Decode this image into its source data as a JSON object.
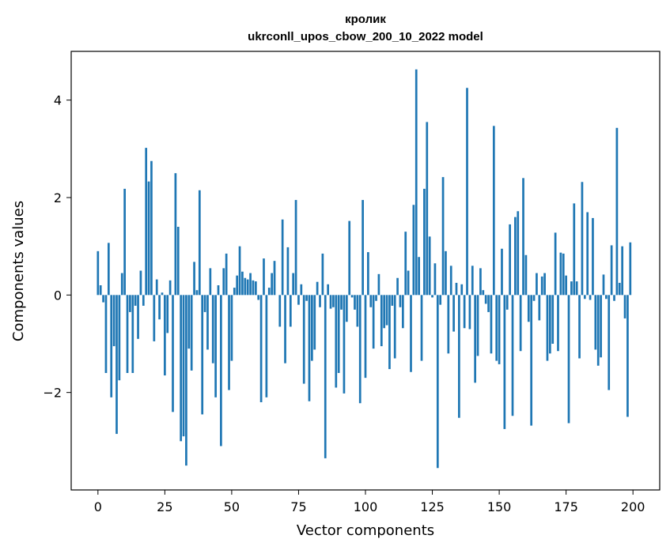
{
  "chart_data": {
    "type": "bar",
    "title_line1": "кролик",
    "title_line2": "ukrconll_upos_cbow_200_10_2022 model",
    "xlabel": "Vector components",
    "ylabel": "Components values",
    "xlim": [
      -10,
      210
    ],
    "ylim": [
      -4.0,
      5.0
    ],
    "xticks": [
      0,
      25,
      50,
      75,
      100,
      125,
      150,
      175,
      200
    ],
    "yticks": [
      -2,
      0,
      2,
      4
    ],
    "ytick_labels": [
      "−2",
      "0",
      "2",
      "4"
    ],
    "bar_color": "#1f77b4",
    "x": [
      0,
      1,
      2,
      3,
      4,
      5,
      6,
      7,
      8,
      9,
      10,
      11,
      12,
      13,
      14,
      15,
      16,
      17,
      18,
      19,
      20,
      21,
      22,
      23,
      24,
      25,
      26,
      27,
      28,
      29,
      30,
      31,
      32,
      33,
      34,
      35,
      36,
      37,
      38,
      39,
      40,
      41,
      42,
      43,
      44,
      45,
      46,
      47,
      48,
      49,
      50,
      51,
      52,
      53,
      54,
      55,
      56,
      57,
      58,
      59,
      60,
      61,
      62,
      63,
      64,
      65,
      66,
      67,
      68,
      69,
      70,
      71,
      72,
      73,
      74,
      75,
      76,
      77,
      78,
      79,
      80,
      81,
      82,
      83,
      84,
      85,
      86,
      87,
      88,
      89,
      90,
      91,
      92,
      93,
      94,
      95,
      96,
      97,
      98,
      99,
      100,
      101,
      102,
      103,
      104,
      105,
      106,
      107,
      108,
      109,
      110,
      111,
      112,
      113,
      114,
      115,
      116,
      117,
      118,
      119,
      120,
      121,
      122,
      123,
      124,
      125,
      126,
      127,
      128,
      129,
      130,
      131,
      132,
      133,
      134,
      135,
      136,
      137,
      138,
      139,
      140,
      141,
      142,
      143,
      144,
      145,
      146,
      147,
      148,
      149,
      150,
      151,
      152,
      153,
      154,
      155,
      156,
      157,
      158,
      159,
      160,
      161,
      162,
      163,
      164,
      165,
      166,
      167,
      168,
      169,
      170,
      171,
      172,
      173,
      174,
      175,
      176,
      177,
      178,
      179,
      180,
      181,
      182,
      183,
      184,
      185,
      186,
      187,
      188,
      189,
      190,
      191,
      192,
      193,
      194,
      195,
      196,
      197,
      198,
      199
    ],
    "values": [
      0.9,
      0.2,
      -0.15,
      -1.6,
      1.07,
      -2.1,
      -1.05,
      -2.85,
      -1.75,
      0.45,
      2.18,
      -1.6,
      -0.35,
      -1.6,
      -0.22,
      -0.9,
      0.5,
      -0.22,
      3.02,
      2.33,
      2.75,
      -0.95,
      0.32,
      -0.5,
      0.05,
      -1.65,
      -0.78,
      0.3,
      -2.4,
      2.5,
      1.4,
      -3.0,
      -2.9,
      -3.5,
      -1.1,
      -1.55,
      0.68,
      0.1,
      2.15,
      -2.45,
      -0.35,
      -1.12,
      0.55,
      -1.4,
      -2.1,
      0.2,
      -3.1,
      0.55,
      0.85,
      -1.95,
      -1.35,
      0.15,
      0.4,
      1.0,
      0.48,
      0.35,
      0.32,
      0.45,
      0.3,
      0.28,
      -0.1,
      -2.2,
      0.75,
      -2.1,
      0.15,
      0.45,
      0.7,
      0.0,
      -0.65,
      1.55,
      -1.4,
      0.98,
      -0.65,
      0.45,
      1.95,
      -0.2,
      0.22,
      -1.82,
      -0.12,
      -2.18,
      -1.35,
      -1.12,
      0.27,
      -0.25,
      0.85,
      -3.35,
      0.22,
      -0.28,
      -0.25,
      -1.9,
      -1.6,
      -0.3,
      -2.02,
      -0.55,
      1.52,
      -0.05,
      -0.3,
      -0.65,
      -2.22,
      1.95,
      -1.7,
      0.88,
      -0.25,
      -1.1,
      -0.12,
      0.43,
      -1.05,
      -0.68,
      -0.62,
      -1.52,
      -0.22,
      -1.3,
      0.35,
      -0.25,
      -0.68,
      1.3,
      0.5,
      -1.58,
      1.85,
      4.63,
      0.78,
      -1.35,
      2.18,
      3.55,
      1.2,
      -0.05,
      0.65,
      -3.55,
      -0.2,
      2.42,
      0.9,
      -1.2,
      0.6,
      -0.75,
      0.25,
      -2.52,
      0.22,
      -0.68,
      4.25,
      -0.7,
      0.6,
      -1.8,
      -1.25,
      0.55,
      0.1,
      -0.18,
      -0.35,
      -1.2,
      3.47,
      -1.35,
      -1.42,
      0.95,
      -2.75,
      -0.3,
      1.45,
      -2.48,
      1.6,
      1.72,
      -1.15,
      2.4,
      0.82,
      -0.55,
      -2.68,
      -0.12,
      0.45,
      -0.52,
      0.38,
      0.45,
      -1.35,
      -1.2,
      -1.0,
      1.28,
      -1.15,
      0.87,
      0.85,
      0.4,
      -2.63,
      0.28,
      1.88,
      0.28,
      -1.3,
      2.32,
      -0.08,
      1.7,
      -0.1,
      1.58,
      -1.12,
      -1.45,
      -1.28,
      0.42,
      -0.08,
      -1.95,
      1.02,
      -0.12,
      3.43,
      0.25,
      1.0,
      -0.48,
      -2.5,
      1.08
    ]
  }
}
